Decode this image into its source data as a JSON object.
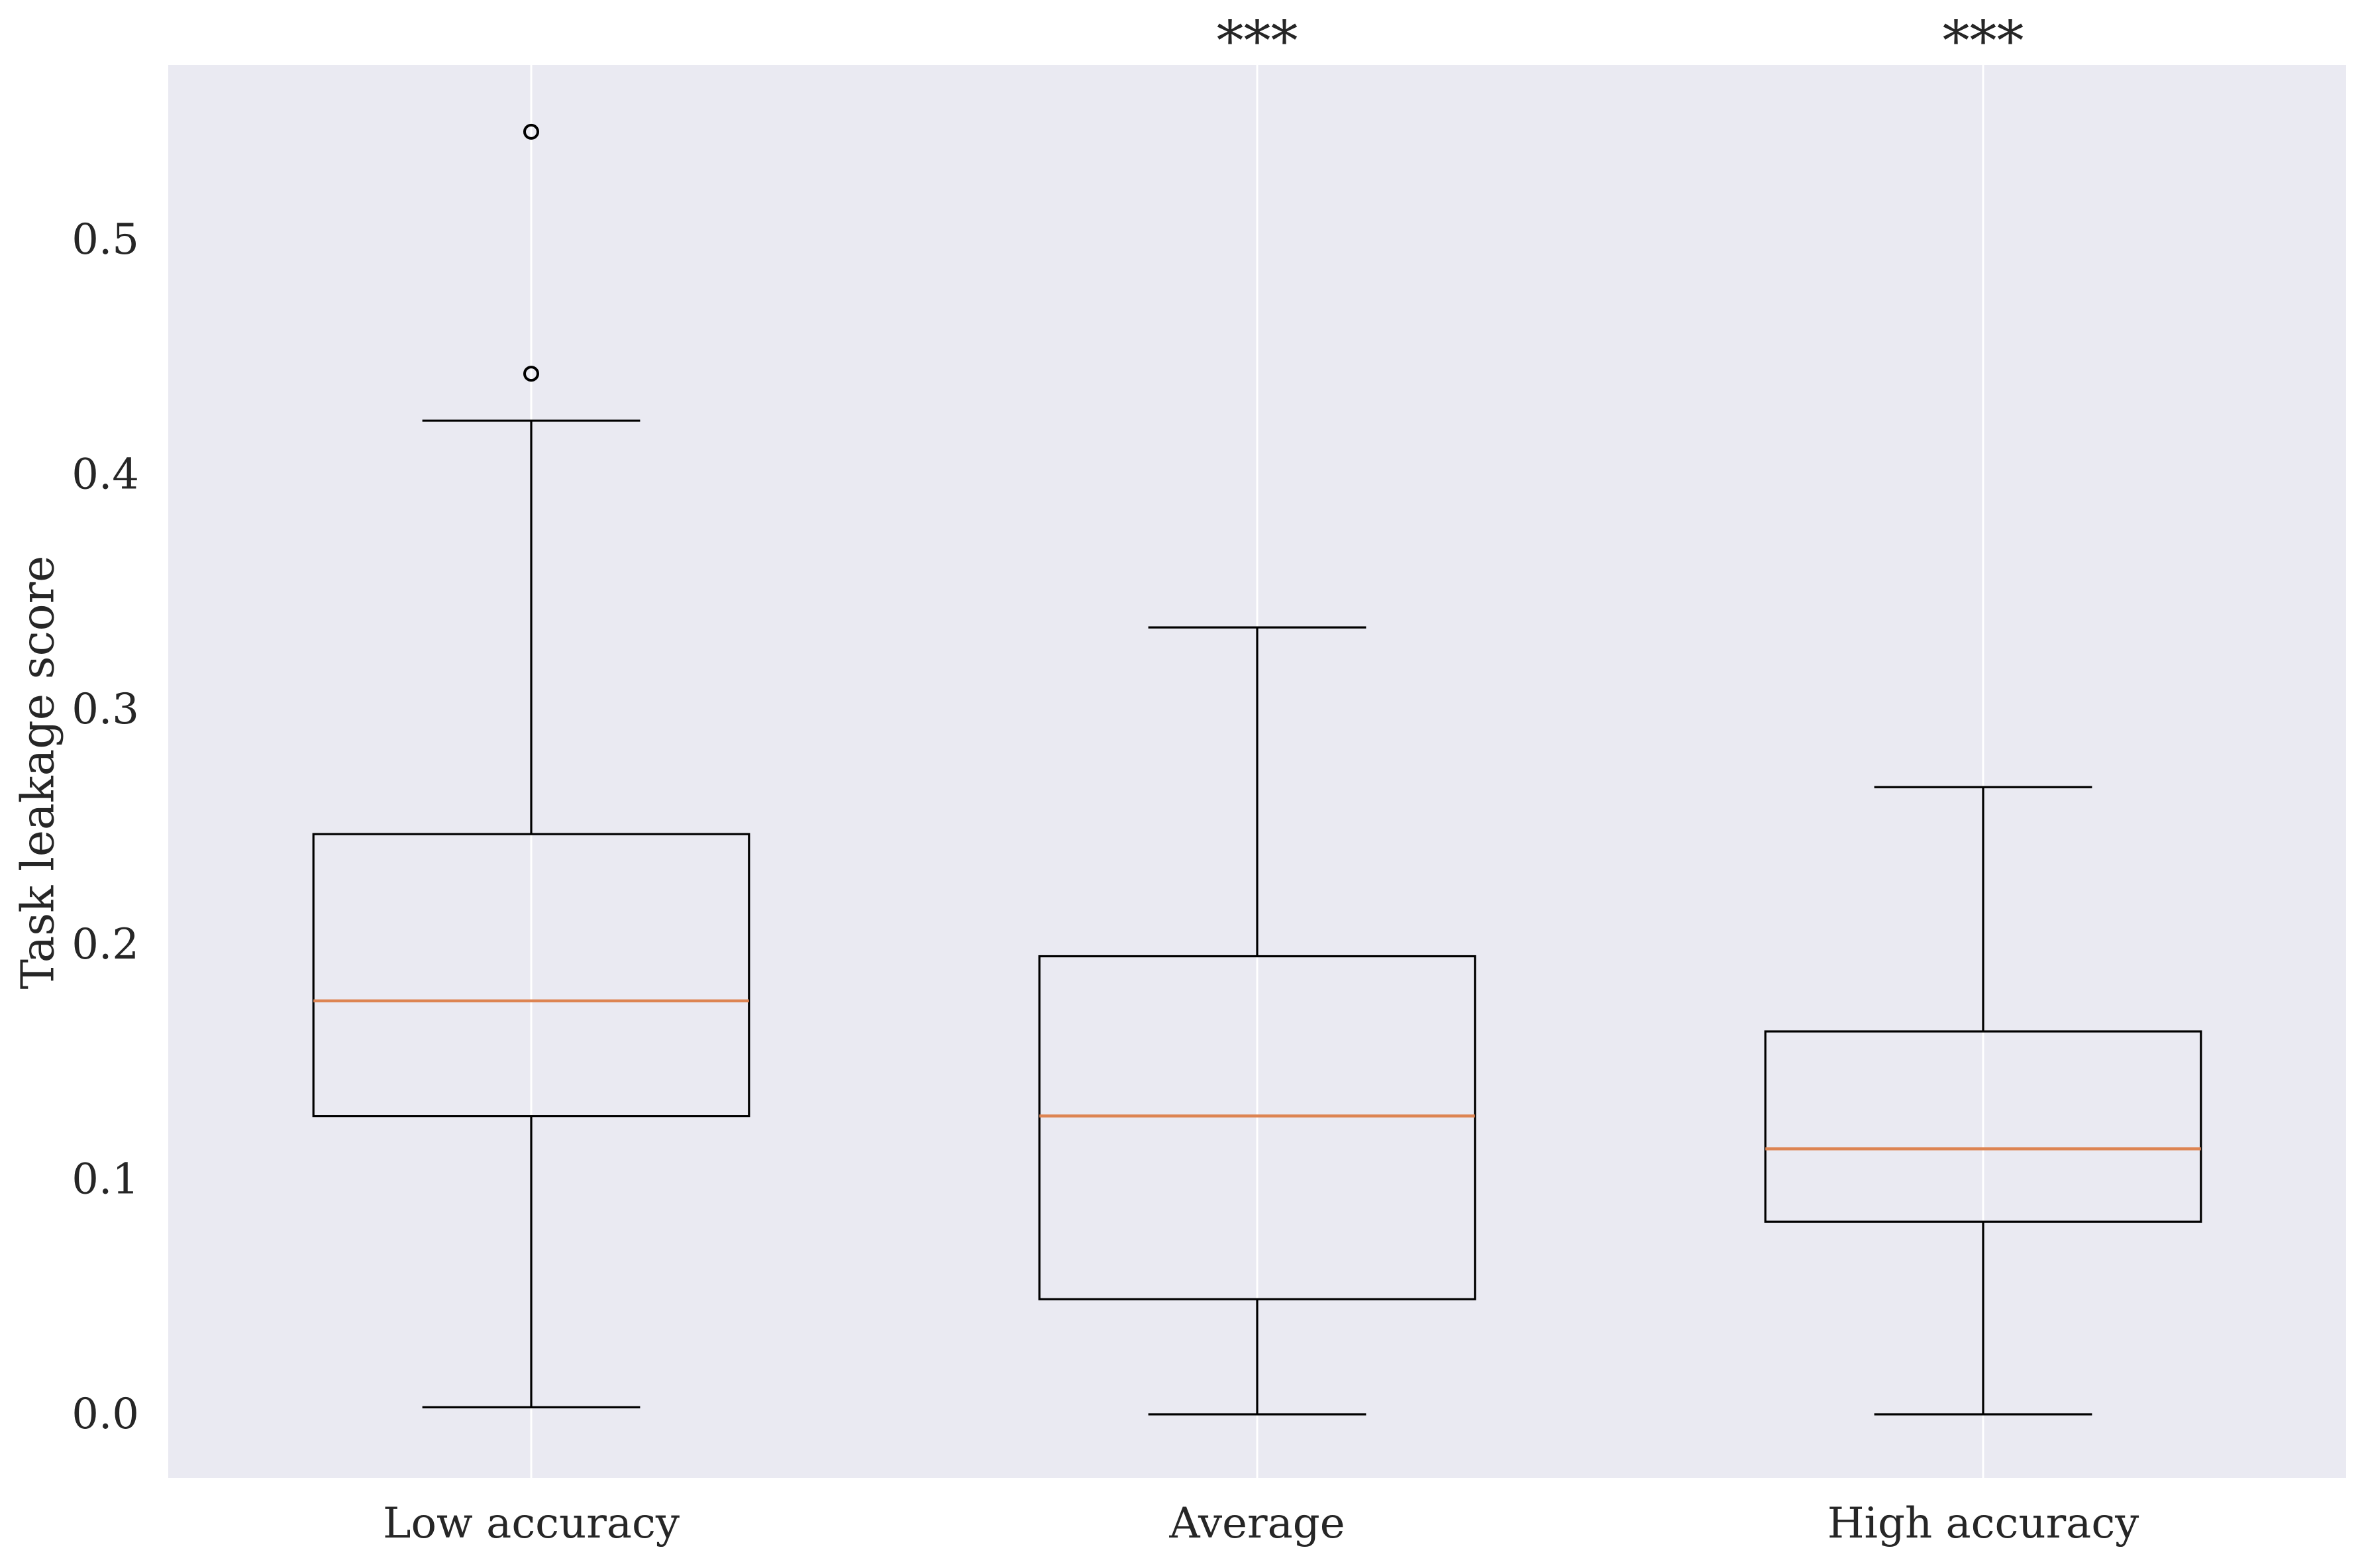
{
  "chart_data": {
    "type": "box",
    "title": "",
    "xlabel": "",
    "ylabel": "Task leakage score",
    "ylim": [
      -0.05,
      0.55
    ],
    "yticks": [
      "0.0",
      "0.1",
      "0.2",
      "0.3",
      "0.4",
      "0.5"
    ],
    "grid": true,
    "colors": {
      "plot_background": "#eaeaf2",
      "grid": "#ffffff",
      "box_edge": "#000000",
      "median": "#dd8452",
      "text": "#262626"
    },
    "categories": [
      "Low accuracy",
      "Average",
      "High accuracy"
    ],
    "boxes": [
      {
        "category": "Low accuracy",
        "whisker_low": 0.003,
        "q1": 0.127,
        "median": 0.176,
        "q3": 0.247,
        "whisker_high": 0.423,
        "outliers": [
          0.443,
          0.546
        ],
        "significance": ""
      },
      {
        "category": "Average",
        "whisker_low": 0.0,
        "q1": 0.049,
        "median": 0.127,
        "q3": 0.195,
        "whisker_high": 0.335,
        "outliers": [],
        "significance": "***"
      },
      {
        "category": "High accuracy",
        "whisker_low": 0.0,
        "q1": 0.082,
        "median": 0.113,
        "q3": 0.163,
        "whisker_high": 0.267,
        "outliers": [],
        "significance": "***"
      }
    ]
  }
}
